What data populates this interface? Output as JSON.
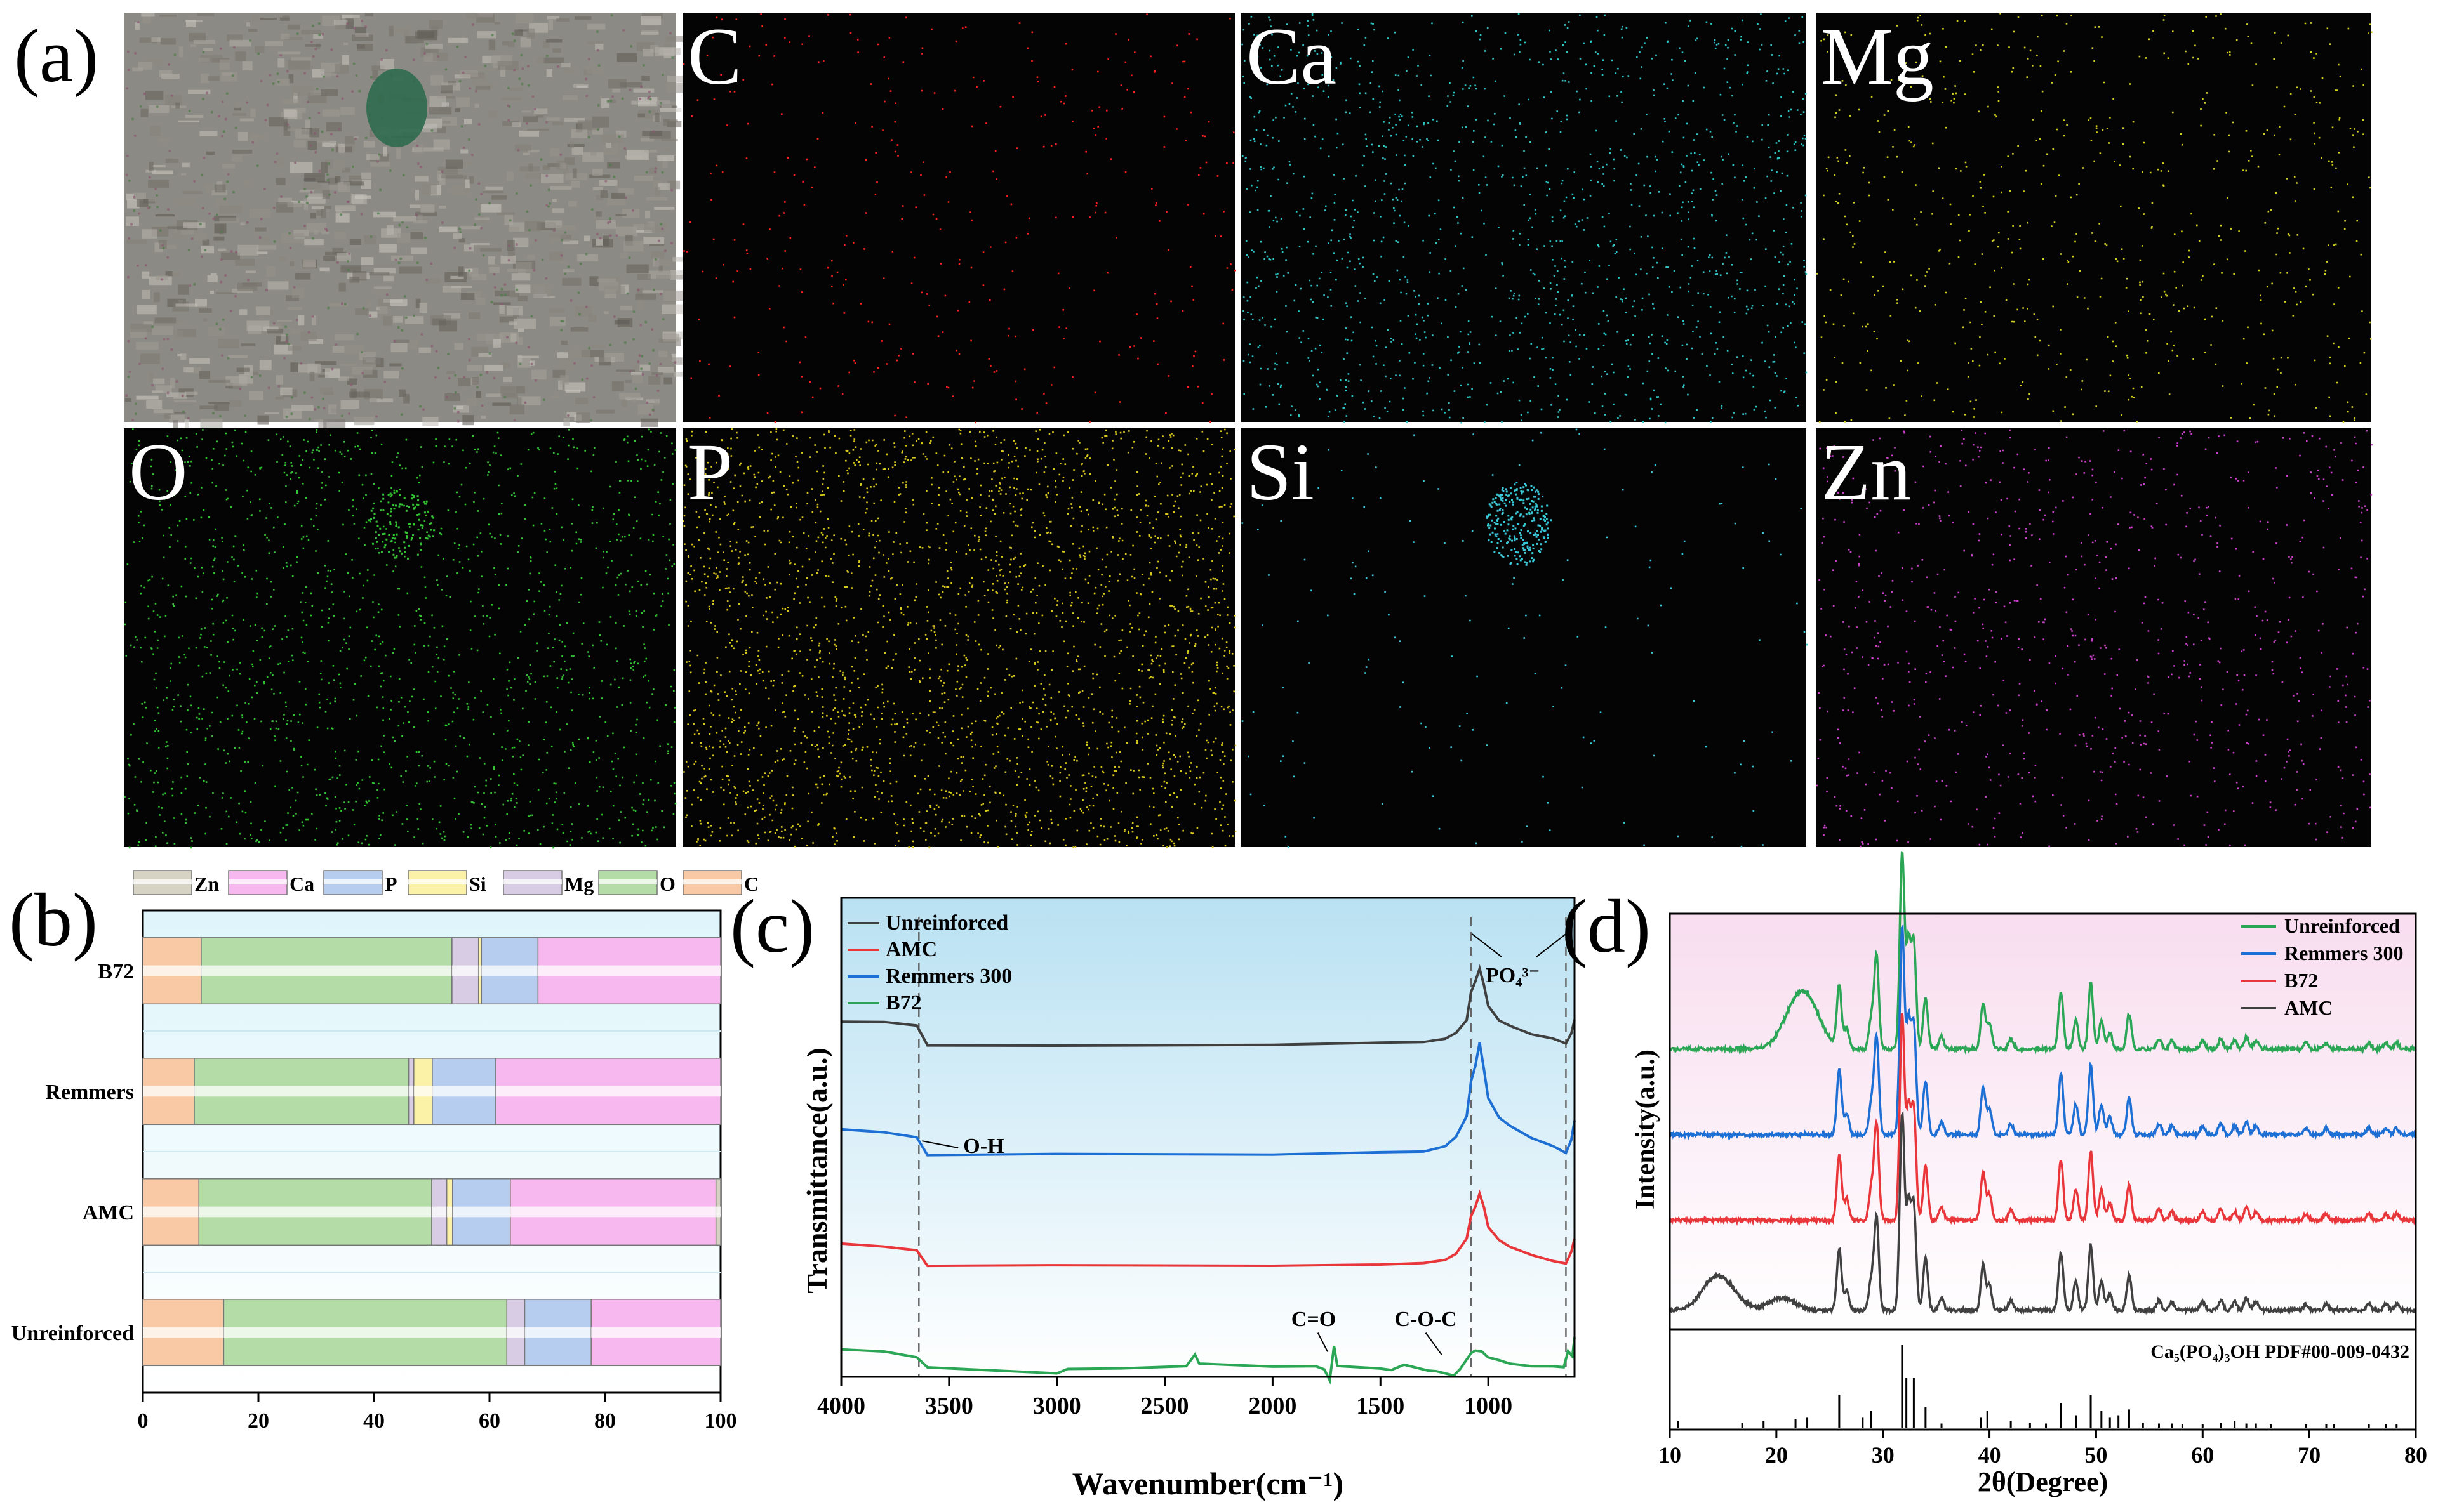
{
  "panels": {
    "a": {
      "label": "(a)",
      "maps": [
        {
          "element": "",
          "color": "#ffffff",
          "kind": "sem-image"
        },
        {
          "element": "C",
          "color": "#ff2020",
          "density": 380
        },
        {
          "element": "Ca",
          "color": "#2fc4c4",
          "density": 1400
        },
        {
          "element": "Mg",
          "color": "#d0d020",
          "density": 700
        },
        {
          "element": "O",
          "color": "#33c433",
          "density": 1600
        },
        {
          "element": "P",
          "color": "#d8c81c",
          "density": 2600
        },
        {
          "element": "Si",
          "color": "#38c8d8",
          "density": 160
        },
        {
          "element": "Zn",
          "color": "#c840c8",
          "density": 900
        }
      ]
    },
    "b": {
      "label": "(b)"
    },
    "c": {
      "label": "(c)"
    },
    "d": {
      "label": "(d)"
    }
  },
  "chart_data": [
    {
      "panel": "b",
      "type": "bar",
      "stacked": true,
      "orientation": "horizontal",
      "categories": [
        "Unreinforced",
        "AMC",
        "Remmers",
        "B72"
      ],
      "xlim": [
        0,
        100
      ],
      "xticks": [
        0,
        20,
        40,
        60,
        80,
        100
      ],
      "legend_position": "top",
      "legend": [
        "Zn",
        "Ca",
        "P",
        "Si",
        "Mg",
        "O",
        "C"
      ],
      "colors": {
        "C": "#f8c9a4",
        "O": "#b4dca6",
        "Mg": "#d8cce4",
        "Si": "#fbf2a8",
        "P": "#b7cdef",
        "Ca": "#f7b8ef",
        "Zn": "#d6d3c4"
      },
      "series": [
        {
          "name": "C",
          "values": [
            14.0,
            9.7,
            8.9,
            10.1
          ]
        },
        {
          "name": "O",
          "values": [
            49.0,
            40.3,
            37.1,
            43.4
          ]
        },
        {
          "name": "Mg",
          "values": [
            3.1,
            2.6,
            0.9,
            4.6
          ]
        },
        {
          "name": "Si",
          "values": [
            0.0,
            1.0,
            3.2,
            0.5
          ]
        },
        {
          "name": "P",
          "values": [
            11.5,
            10.0,
            11.0,
            9.8
          ]
        },
        {
          "name": "Ca",
          "values": [
            22.4,
            35.6,
            38.9,
            31.6
          ]
        },
        {
          "name": "Zn",
          "values": [
            0.0,
            0.8,
            0.0,
            0.0
          ]
        }
      ]
    },
    {
      "panel": "c",
      "type": "line",
      "xlabel": "Wavenumber(cm⁻¹)",
      "ylabel": "Transmittance(a.u.)",
      "xlim": [
        4000,
        600
      ],
      "xticks": [
        4000,
        3500,
        3000,
        2500,
        2000,
        1500,
        1000
      ],
      "legend_position": "top-left",
      "background": "#d2ecf6",
      "annotations": [
        {
          "text": "O-H",
          "x": 3640
        },
        {
          "text": "C=O",
          "x": 1730
        },
        {
          "text": "C-O-C",
          "x": 1150
        },
        {
          "text": "PO₄³⁻",
          "x": 1080
        }
      ],
      "dashed_lines_x": [
        3640,
        1080,
        640
      ],
      "series": [
        {
          "name": "Unreinforced",
          "color": "#404040",
          "offset": 3.8,
          "points": [
            [
              4000,
              0.28
            ],
            [
              3800,
              0.26
            ],
            [
              3650,
              0.22
            ],
            [
              3600,
              0.0
            ],
            [
              3000,
              0.0
            ],
            [
              2000,
              0.0
            ],
            [
              1500,
              0.02
            ],
            [
              1300,
              0.04
            ],
            [
              1200,
              0.07
            ],
            [
              1150,
              0.15
            ],
            [
              1100,
              0.3
            ],
            [
              1080,
              0.62
            ],
            [
              1060,
              0.74
            ],
            [
              1040,
              0.9
            ],
            [
              1020,
              0.7
            ],
            [
              1000,
              0.46
            ],
            [
              950,
              0.28
            ],
            [
              900,
              0.22
            ],
            [
              800,
              0.13
            ],
            [
              700,
              0.07
            ],
            [
              640,
              0.02
            ],
            [
              615,
              0.14
            ],
            [
              600,
              0.3
            ]
          ]
        },
        {
          "name": "Remmers 300",
          "color": "#1e6fd4",
          "offset": 2.52,
          "points": [
            [
              4000,
              0.3
            ],
            [
              3800,
              0.26
            ],
            [
              3650,
              0.2
            ],
            [
              3600,
              0.0
            ],
            [
              3000,
              0.0
            ],
            [
              2000,
              0.0
            ],
            [
              1500,
              0.02
            ],
            [
              1300,
              0.04
            ],
            [
              1200,
              0.1
            ],
            [
              1150,
              0.2
            ],
            [
              1100,
              0.45
            ],
            [
              1080,
              0.86
            ],
            [
              1060,
              1.04
            ],
            [
              1040,
              1.3
            ],
            [
              1020,
              1.0
            ],
            [
              1000,
              0.66
            ],
            [
              950,
              0.44
            ],
            [
              900,
              0.34
            ],
            [
              800,
              0.2
            ],
            [
              700,
              0.1
            ],
            [
              640,
              0.02
            ],
            [
              615,
              0.18
            ],
            [
              600,
              0.4
            ]
          ]
        },
        {
          "name": "AMC",
          "color": "#e8363a",
          "offset": 1.22,
          "points": [
            [
              4000,
              0.26
            ],
            [
              3800,
              0.22
            ],
            [
              3650,
              0.18
            ],
            [
              3600,
              0.0
            ],
            [
              3000,
              0.0
            ],
            [
              2000,
              0.0
            ],
            [
              1500,
              0.02
            ],
            [
              1300,
              0.04
            ],
            [
              1200,
              0.08
            ],
            [
              1150,
              0.15
            ],
            [
              1100,
              0.32
            ],
            [
              1080,
              0.58
            ],
            [
              1060,
              0.68
            ],
            [
              1040,
              0.84
            ],
            [
              1020,
              0.68
            ],
            [
              1000,
              0.46
            ],
            [
              950,
              0.3
            ],
            [
              900,
              0.22
            ],
            [
              800,
              0.13
            ],
            [
              700,
              0.06
            ],
            [
              640,
              0.02
            ],
            [
              615,
              0.16
            ],
            [
              600,
              0.32
            ]
          ]
        },
        {
          "name": "B72",
          "color": "#2aa655",
          "offset": 0.0,
          "points": [
            [
              4000,
              0.25
            ],
            [
              3800,
              0.22
            ],
            [
              3650,
              0.16
            ],
            [
              3600,
              0.03
            ],
            [
              3300,
              0.0
            ],
            [
              3000,
              -0.04
            ],
            [
              2950,
              0.02
            ],
            [
              2700,
              0.03
            ],
            [
              2400,
              0.06
            ],
            [
              2360,
              0.18
            ],
            [
              2340,
              0.08
            ],
            [
              2000,
              0.05
            ],
            [
              1800,
              0.05
            ],
            [
              1760,
              0.02
            ],
            [
              1735,
              -0.12
            ],
            [
              1715,
              0.28
            ],
            [
              1700,
              0.05
            ],
            [
              1500,
              0.02
            ],
            [
              1450,
              0.0
            ],
            [
              1390,
              0.06
            ],
            [
              1280,
              0.0
            ],
            [
              1240,
              0.0
            ],
            [
              1160,
              -0.05
            ],
            [
              1130,
              0.02
            ],
            [
              1080,
              0.2
            ],
            [
              1060,
              0.23
            ],
            [
              1030,
              0.22
            ],
            [
              1000,
              0.16
            ],
            [
              950,
              0.12
            ],
            [
              900,
              0.08
            ],
            [
              800,
              0.05
            ],
            [
              700,
              0.04
            ],
            [
              650,
              0.03
            ],
            [
              630,
              0.22
            ],
            [
              610,
              0.16
            ],
            [
              600,
              0.38
            ]
          ]
        }
      ]
    },
    {
      "panel": "d",
      "type": "line",
      "xlabel": "2θ(Degree)",
      "ylabel": "Intensity(a.u.)",
      "xlim": [
        10,
        80
      ],
      "xticks": [
        10,
        20,
        30,
        40,
        50,
        60,
        70,
        80
      ],
      "legend_position": "top-right",
      "background": "#fbe8f3",
      "reference": {
        "label": "Ca₅(PO₄)₃OH PDF#00-009-0432",
        "lines": [
          [
            10.8,
            0.08
          ],
          [
            16.8,
            0.06
          ],
          [
            18.8,
            0.08
          ],
          [
            21.8,
            0.1
          ],
          [
            22.9,
            0.12
          ],
          [
            25.9,
            0.4
          ],
          [
            28.1,
            0.12
          ],
          [
            28.9,
            0.2
          ],
          [
            31.8,
            1.0
          ],
          [
            32.2,
            0.6
          ],
          [
            32.9,
            0.6
          ],
          [
            34.0,
            0.25
          ],
          [
            35.5,
            0.05
          ],
          [
            39.2,
            0.12
          ],
          [
            39.8,
            0.2
          ],
          [
            42.0,
            0.08
          ],
          [
            43.8,
            0.06
          ],
          [
            45.3,
            0.05
          ],
          [
            46.7,
            0.3
          ],
          [
            48.1,
            0.15
          ],
          [
            49.5,
            0.4
          ],
          [
            50.5,
            0.2
          ],
          [
            51.3,
            0.12
          ],
          [
            52.1,
            0.15
          ],
          [
            53.1,
            0.22
          ],
          [
            54.4,
            0.06
          ],
          [
            55.9,
            0.05
          ],
          [
            57.1,
            0.05
          ],
          [
            58.1,
            0.04
          ],
          [
            60.0,
            0.04
          ],
          [
            61.7,
            0.06
          ],
          [
            63.0,
            0.08
          ],
          [
            64.1,
            0.05
          ],
          [
            65.0,
            0.05
          ],
          [
            66.4,
            0.04
          ],
          [
            69.7,
            0.04
          ],
          [
            71.6,
            0.04
          ],
          [
            72.3,
            0.04
          ],
          [
            75.6,
            0.04
          ],
          [
            77.2,
            0.04
          ],
          [
            78.2,
            0.04
          ]
        ]
      },
      "peaks": [
        [
          25.9,
          0.3
        ],
        [
          26.6,
          0.1
        ],
        [
          28.9,
          0.14
        ],
        [
          29.4,
          0.45
        ],
        [
          31.8,
          0.95
        ],
        [
          32.4,
          0.5
        ],
        [
          32.9,
          0.5
        ],
        [
          34.0,
          0.25
        ],
        [
          35.5,
          0.06
        ],
        [
          39.4,
          0.22
        ],
        [
          40.0,
          0.12
        ],
        [
          42.0,
          0.05
        ],
        [
          46.7,
          0.28
        ],
        [
          48.1,
          0.14
        ],
        [
          49.5,
          0.32
        ],
        [
          50.5,
          0.14
        ],
        [
          51.3,
          0.08
        ],
        [
          53.1,
          0.17
        ],
        [
          55.9,
          0.05
        ],
        [
          57.1,
          0.04
        ],
        [
          60.0,
          0.04
        ],
        [
          61.7,
          0.05
        ],
        [
          63.0,
          0.04
        ],
        [
          64.1,
          0.06
        ],
        [
          65.0,
          0.04
        ],
        [
          69.7,
          0.03
        ],
        [
          71.6,
          0.03
        ],
        [
          75.6,
          0.03
        ],
        [
          77.2,
          0.03
        ],
        [
          78.2,
          0.03
        ]
      ],
      "series": [
        {
          "name": "Unreinforced",
          "color": "#2aa655",
          "offset": 3.05,
          "scale": 1.0,
          "hump": [
            [
              21.5,
              0.12
            ],
            [
              22.5,
              0.1
            ],
            [
              23.3,
              0.12
            ],
            [
              14.5,
              0.0
            ]
          ]
        },
        {
          "name": "Remmers 300",
          "color": "#1e6fd4",
          "offset": 2.05,
          "scale": 1.05,
          "hump": []
        },
        {
          "name": "B72",
          "color": "#e8363a",
          "offset": 1.05,
          "scale": 1.05,
          "hump": []
        },
        {
          "name": "AMC",
          "color": "#404040",
          "offset": 0.0,
          "scale": 1.0,
          "hump": [
            [
              14.0,
              0.12
            ],
            [
              15.5,
              0.08
            ],
            [
              20.5,
              0.06
            ]
          ]
        }
      ]
    }
  ]
}
